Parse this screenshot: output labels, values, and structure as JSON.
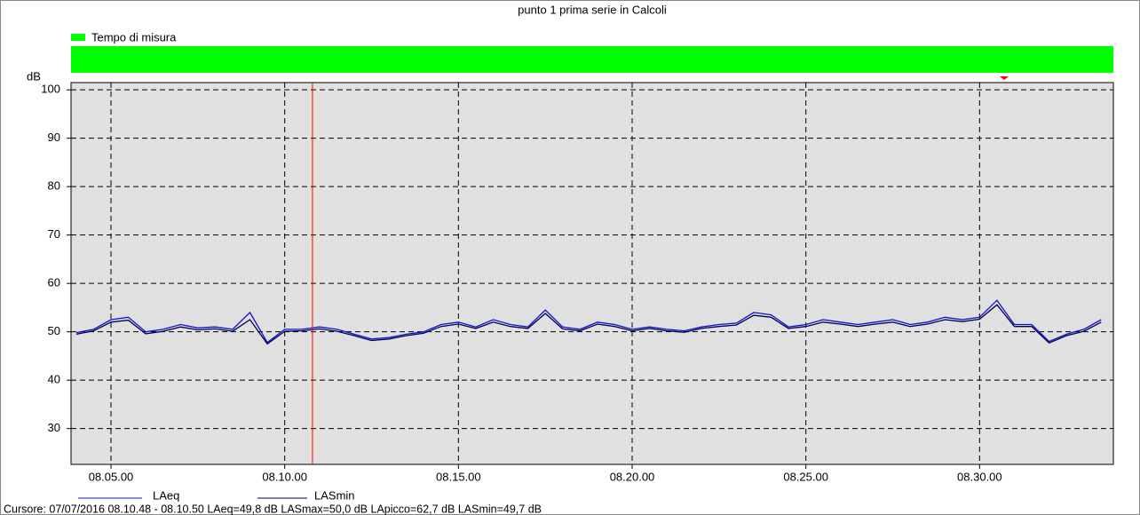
{
  "chart_data": {
    "type": "line",
    "title": "punto 1 prima serie in Calcoli",
    "band_label": "Tempo di misura",
    "band_color": "#00ff00",
    "y_label": "dB",
    "status": "Cursore: 07/07/2016 08.10.48 - 08.10.50  LAeq=49,8 dB  LASmax=50,0 dB  LApicco=62,7 dB  LASmin=49,7 dB",
    "cursor_x": "08.10.48",
    "x": [
      "08.04.00",
      "08.04.30",
      "08.05.00",
      "08.05.30",
      "08.06.00",
      "08.06.30",
      "08.07.00",
      "08.07.30",
      "08.08.00",
      "08.08.30",
      "08.09.00",
      "08.09.30",
      "08.10.00",
      "08.10.30",
      "08.11.00",
      "08.11.30",
      "08.12.00",
      "08.12.30",
      "08.13.00",
      "08.13.30",
      "08.14.00",
      "08.14.30",
      "08.15.00",
      "08.15.30",
      "08.16.00",
      "08.16.30",
      "08.17.00",
      "08.17.30",
      "08.18.00",
      "08.18.30",
      "08.19.00",
      "08.19.30",
      "08.20.00",
      "08.20.30",
      "08.21.00",
      "08.21.30",
      "08.22.00",
      "08.22.30",
      "08.23.00",
      "08.23.30",
      "08.24.00",
      "08.24.30",
      "08.25.00",
      "08.25.30",
      "08.26.00",
      "08.26.30",
      "08.27.00",
      "08.27.30",
      "08.28.00",
      "08.28.30",
      "08.29.00",
      "08.29.30",
      "08.30.00",
      "08.30.30",
      "08.31.00",
      "08.31.30",
      "08.32.00",
      "08.32.30",
      "08.33.00",
      "08.33.30"
    ],
    "series": [
      {
        "name": "LAeq",
        "color": "#1010d0",
        "values": [
          49.8,
          50.5,
          52.5,
          53.0,
          50.0,
          50.5,
          51.5,
          50.8,
          51.0,
          50.5,
          54.0,
          47.8,
          50.5,
          50.5,
          51.0,
          50.5,
          49.5,
          48.5,
          48.8,
          49.5,
          50.0,
          51.5,
          52.0,
          51.0,
          52.5,
          51.5,
          51.0,
          54.5,
          51.0,
          50.5,
          52.0,
          51.5,
          50.5,
          51.0,
          50.5,
          50.2,
          51.0,
          51.5,
          51.8,
          54.0,
          53.5,
          51.0,
          51.5,
          52.5,
          52.0,
          51.5,
          52.0,
          52.5,
          51.5,
          52.0,
          53.0,
          52.5,
          53.0,
          56.5,
          51.5,
          51.5,
          48.0,
          49.5,
          50.5,
          52.5
        ]
      },
      {
        "name": "LASmin",
        "color": "#000050",
        "values": [
          49.5,
          50.2,
          52.0,
          52.4,
          49.6,
          50.1,
          51.0,
          50.4,
          50.6,
          50.1,
          52.5,
          47.5,
          50.1,
          50.2,
          50.6,
          50.1,
          49.2,
          48.2,
          48.5,
          49.2,
          49.7,
          51.1,
          51.6,
          50.7,
          52.0,
          51.1,
          50.7,
          53.8,
          50.6,
          50.2,
          51.6,
          51.1,
          50.2,
          50.7,
          50.2,
          49.9,
          50.7,
          51.1,
          51.4,
          53.4,
          53.0,
          50.7,
          51.1,
          52.0,
          51.6,
          51.1,
          51.6,
          52.0,
          51.1,
          51.6,
          52.5,
          52.1,
          52.6,
          55.6,
          51.1,
          51.1,
          47.7,
          49.2,
          50.1,
          52.0
        ]
      }
    ],
    "xlim": [
      "08.03.51",
      "08.33.51"
    ],
    "xticks": [
      "08.05.00",
      "08.10.00",
      "08.15.00",
      "08.20.00",
      "08.25.00",
      "08.30.00"
    ],
    "ylim": [
      22.6,
      101.5
    ],
    "yticks": [
      30,
      40,
      50,
      60,
      70,
      80,
      90,
      100
    ],
    "grid": true
  }
}
